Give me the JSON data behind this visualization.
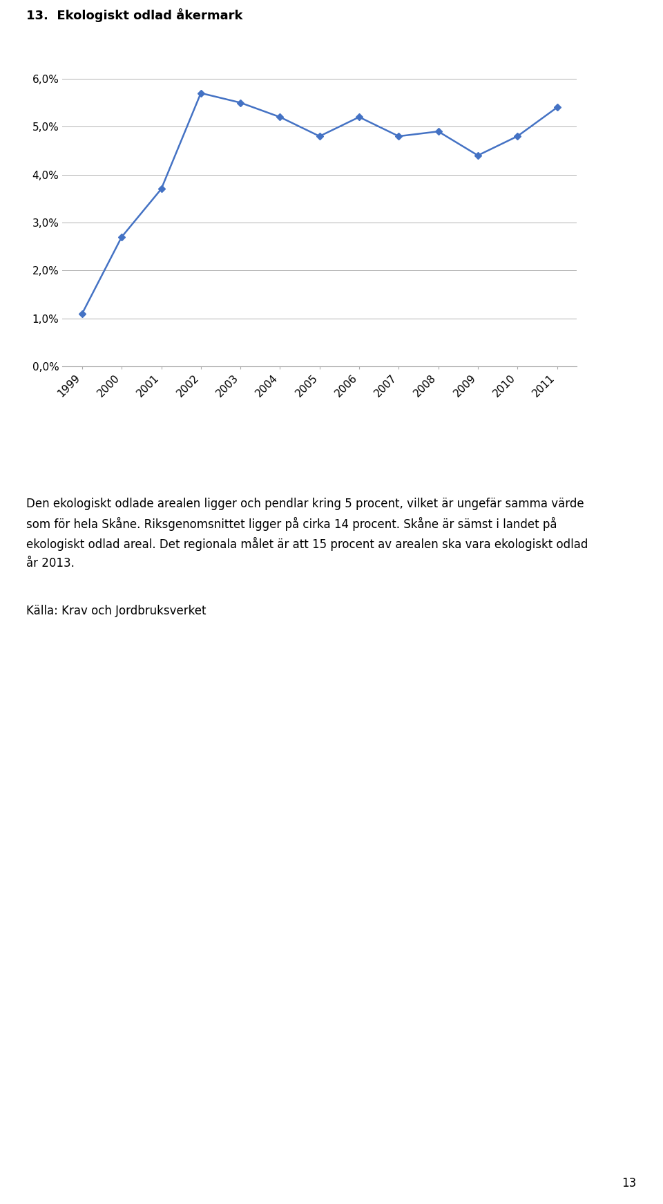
{
  "title": "13.  Ekologiskt odlad åkermark",
  "years": [
    1999,
    2000,
    2001,
    2002,
    2003,
    2004,
    2005,
    2006,
    2007,
    2008,
    2009,
    2010,
    2011
  ],
  "values": [
    0.011,
    0.027,
    0.037,
    0.057,
    0.055,
    0.052,
    0.048,
    0.052,
    0.048,
    0.049,
    0.044,
    0.048,
    0.054
  ],
  "ylim": [
    0.0,
    0.062
  ],
  "yticks": [
    0.0,
    0.01,
    0.02,
    0.03,
    0.04,
    0.05,
    0.06
  ],
  "ytick_labels": [
    "0,0%",
    "1,0%",
    "2,0%",
    "3,0%",
    "4,0%",
    "5,0%",
    "6,0%"
  ],
  "line_color": "#4472C4",
  "marker": "D",
  "marker_size": 5,
  "line_width": 1.8,
  "body_text": "Den ekologiskt odlade arealen ligger och pendlar kring 5 procent, vilket är ungefär samma värde\nsom för hela Skåne. Riksgenomsnittet ligger på cirka 14 procent. Skåne är sämst i landet på\nekologiskt odlad areal. Det regionala målet är att 15 procent av arealen ska vara ekologiskt odlad\når 2013.",
  "source_text": "Källa: Krav och Jordbruksverket",
  "page_number": "13",
  "background_color": "#ffffff",
  "grid_color": "#b0b0b0",
  "title_fontsize": 13,
  "axis_fontsize": 11,
  "body_fontsize": 12,
  "source_fontsize": 12
}
